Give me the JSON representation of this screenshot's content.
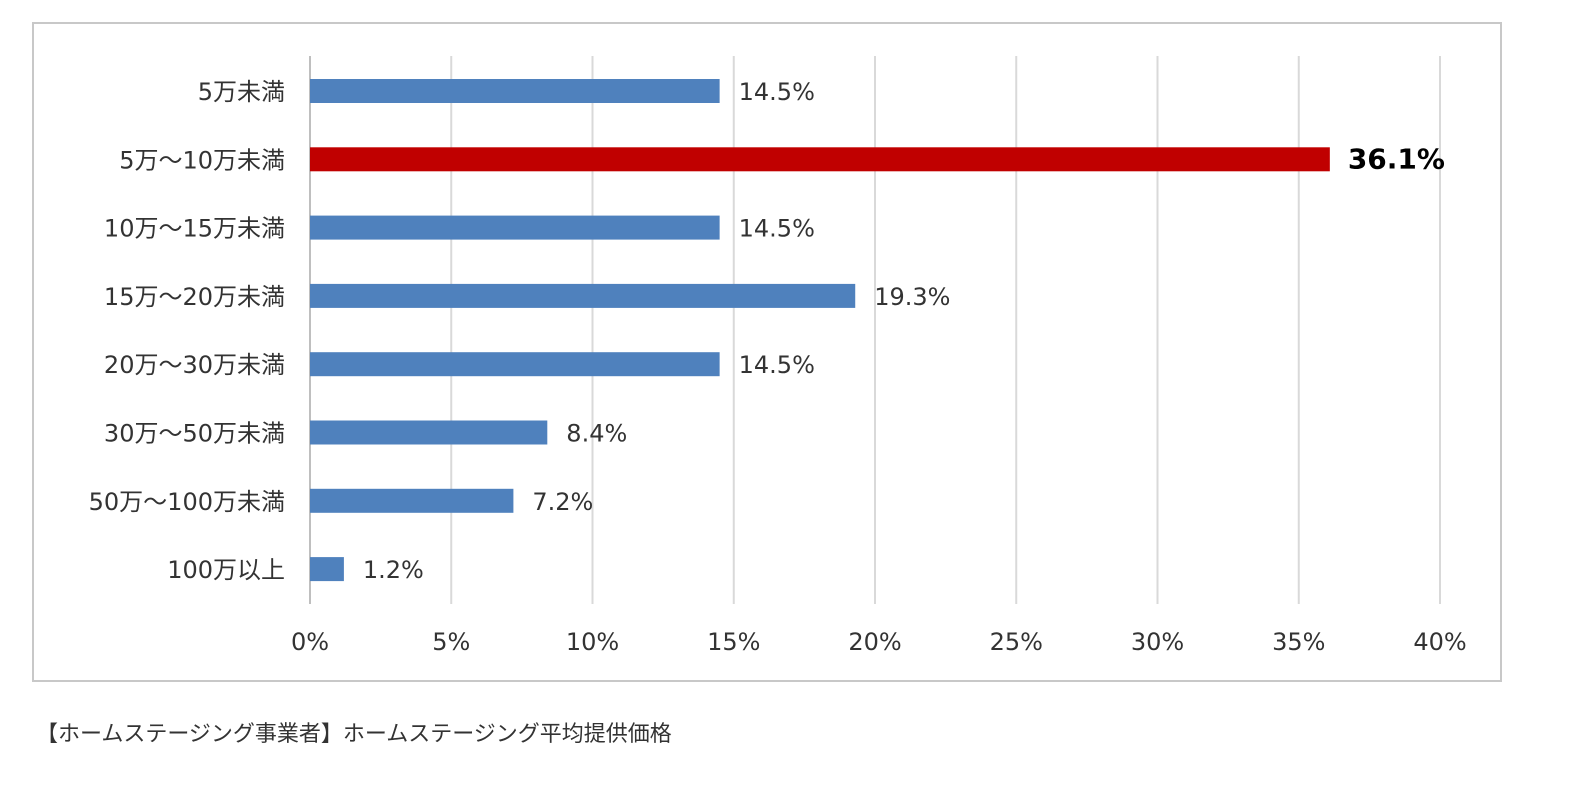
{
  "chart_data": {
    "type": "bar",
    "orientation": "horizontal",
    "categories": [
      "5万未満",
      "5万～10万未満",
      "10万～15万未満",
      "15万～20万未満",
      "20万～30万未満",
      "30万～50万未満",
      "50万～100万未満",
      "100万以上"
    ],
    "values": [
      14.5,
      36.1,
      14.5,
      19.3,
      14.5,
      8.4,
      7.2,
      1.2
    ],
    "data_labels": [
      "14.5%",
      "36.1%",
      "14.5%",
      "19.3%",
      "14.5%",
      "8.4%",
      "7.2%",
      "1.2%"
    ],
    "highlight_index": 1,
    "bar_color": "#4f81bd",
    "highlight_color": "#c00000",
    "xlim": [
      0,
      40
    ],
    "x_ticks": [
      0,
      5,
      10,
      15,
      20,
      25,
      30,
      35,
      40
    ],
    "x_tick_labels": [
      "0%",
      "5%",
      "10%",
      "15%",
      "20%",
      "25%",
      "30%",
      "35%",
      "40%"
    ],
    "grid": "vertical",
    "legend": "none"
  },
  "caption": "【ホームステージング事業者】ホームステージング平均提供価格"
}
